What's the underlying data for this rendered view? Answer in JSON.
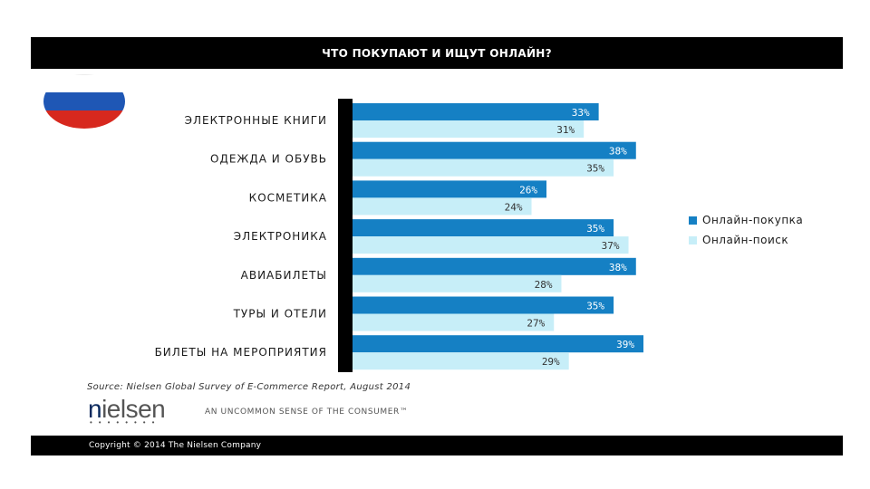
{
  "header": {
    "title": "ЧТО ПОКУПАЮТ И ИЩУТ ОНЛАЙН?"
  },
  "flag": {
    "name": "russia-flag-icon",
    "colors": [
      "#ffffff",
      "#1f57b5",
      "#d7281e"
    ]
  },
  "chart_data": {
    "type": "bar",
    "orientation": "horizontal",
    "title": "ЧТО ПОКУПАЮТ И ИЩУТ ОНЛАЙН?",
    "categories": [
      "ЭЛЕКТРОННЫЕ КНИГИ",
      "ОДЕЖДА И ОБУВЬ",
      "КОСМЕТИКА",
      "ЭЛЕКТРОНИКА",
      "АВИАБИЛЕТЫ",
      "ТУРЫ И ОТЕЛИ",
      "БИЛЕТЫ НА МЕРОПРИЯТИЯ"
    ],
    "series": [
      {
        "name": "Онлайн-покупка",
        "color": "#1580c4",
        "label_color": "#ffffff",
        "values": [
          33,
          38,
          26,
          35,
          38,
          35,
          39
        ],
        "labels": [
          "33%",
          "38%",
          "26%",
          "35%",
          "38%",
          "35%",
          "39%"
        ]
      },
      {
        "name": "Онлайн-поиск",
        "color": "#c7eef8",
        "label_color": "#333333",
        "values": [
          31,
          35,
          24,
          37,
          28,
          27,
          29
        ],
        "labels": [
          "31%",
          "35%",
          "24%",
          "37%",
          "28%",
          "27%",
          "29%"
        ]
      }
    ],
    "xlim": [
      0,
      45
    ],
    "legend": "right"
  },
  "legend": {
    "items": [
      {
        "label": "Онлайн-покупка",
        "color": "#1580c4"
      },
      {
        "label": "Онлайн-поиск",
        "color": "#c7eef8"
      }
    ]
  },
  "source": "Source: Nielsen Global Survey of E-Commerce Report, August 2014",
  "logo": {
    "text_n": "n",
    "text_rest": "ielsen",
    "dots": "••••••••"
  },
  "tagline": "AN UNCOMMON SENSE OF THE CONSUMER™",
  "footer": {
    "copyright": "Copyright © 2014 The Nielsen Company"
  }
}
